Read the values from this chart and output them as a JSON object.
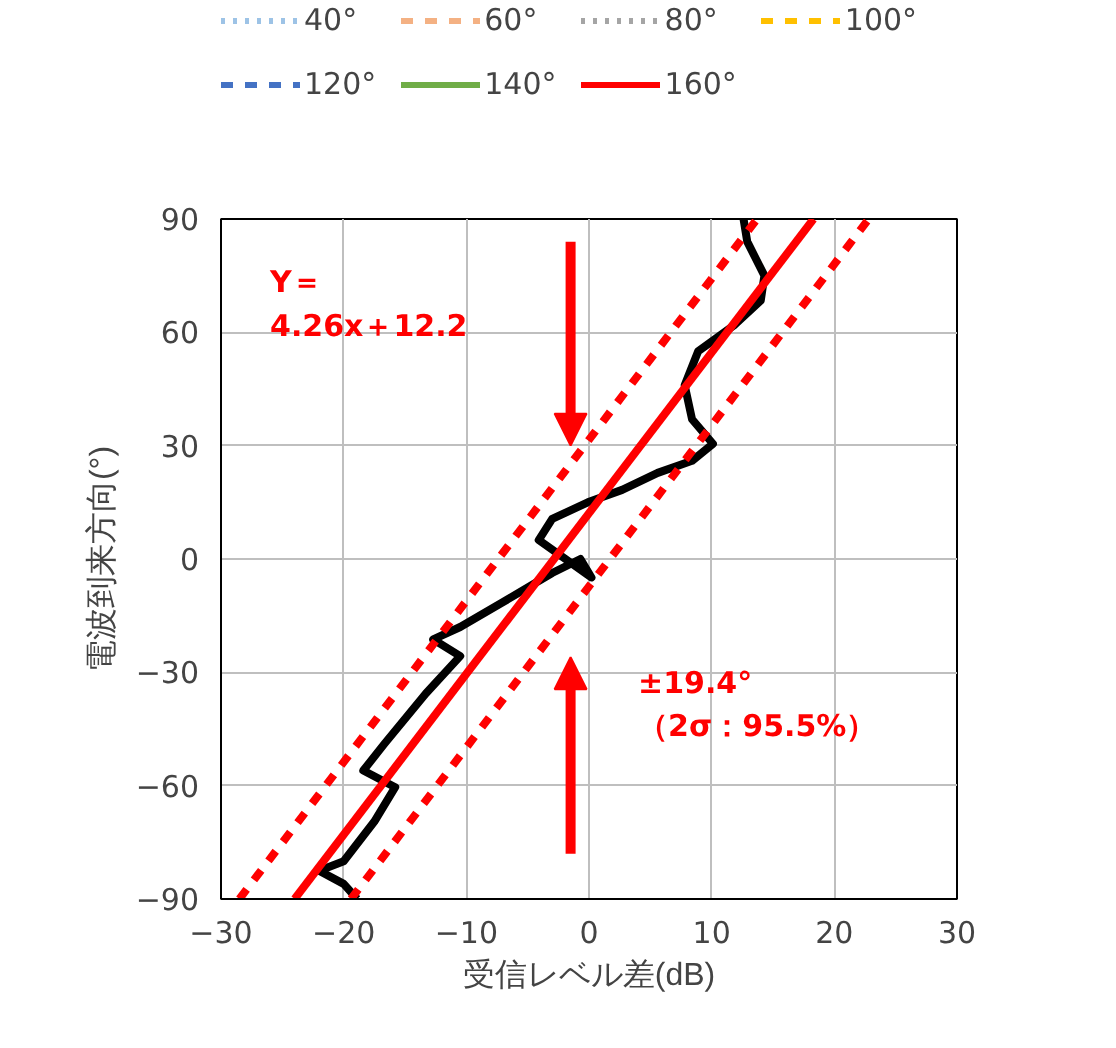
{
  "chart_data": {
    "type": "line",
    "xlabel": "受信レベル差(dB)",
    "ylabel": "電波到来方向(°)",
    "xlim": [
      -30,
      30
    ],
    "xticks": [
      -30,
      -20,
      -10,
      0,
      10,
      20,
      30
    ],
    "ylim": [
      -90,
      90
    ],
    "yticks": [
      -90,
      -60,
      -30,
      0,
      30,
      60,
      90
    ],
    "grid": true,
    "legend": "top",
    "marker": "none",
    "series": [
      {
        "name": "40°",
        "color": "#9dc3e6",
        "line_style": "dotted"
      },
      {
        "name": "60°",
        "color": "#f4b183",
        "line_style": "dashed"
      },
      {
        "name": "80°",
        "color": "#a5a5a5",
        "line_style": "dotted"
      },
      {
        "name": "100°",
        "color": "#ffc000",
        "line_style": "dashed"
      },
      {
        "name": "120°",
        "color": "#4472c4",
        "line_style": "dashed"
      },
      {
        "name": "140°",
        "color": "#70ad47",
        "line_style": "solid"
      },
      {
        "name": "160°",
        "color": "#ff0000",
        "line_style": "solid"
      },
      {
        "color": "#000000",
        "line_style": "solid",
        "x": [
          -18.9,
          -20,
          -22,
          -20,
          -17.5,
          -15.8,
          -18.4,
          -16.7,
          -13.3,
          -10.5,
          -12.7,
          -10.5,
          -7,
          -3,
          -0.7,
          0.2,
          -4.1,
          -3,
          -0.1,
          2.7,
          5.6,
          8.4,
          10.1,
          8.4,
          7.8,
          8.9,
          11.8,
          14,
          14.3,
          12.9,
          12.6
        ],
        "values": [
          -90,
          -86,
          -82.5,
          -80,
          -69.5,
          -60.4,
          -56,
          -49,
          -35.6,
          -25.7,
          -21.3,
          -18,
          -11.4,
          -3.7,
          0,
          -4.9,
          5,
          10.6,
          15,
          18.3,
          22.8,
          26,
          30.5,
          37,
          46,
          55,
          61.8,
          68.4,
          75,
          84,
          90
        ]
      },
      {
        "color": "#ff0000",
        "line_style": "solid",
        "x": [
          -24,
          18.3
        ],
        "values": [
          -90,
          90
        ]
      },
      {
        "color": "#ff0000",
        "line_style": "dashed",
        "x": [
          -28.5,
          13.7
        ],
        "values": [
          -90,
          90
        ]
      },
      {
        "color": "#ff0000",
        "line_style": "dashed",
        "x": [
          -19.4,
          22.8
        ],
        "values": [
          -90,
          90
        ]
      }
    ],
    "annotations": [
      "Y＝\n4.26x＋12.2",
      "±19.4°\n（2σ：95.5%）"
    ]
  }
}
